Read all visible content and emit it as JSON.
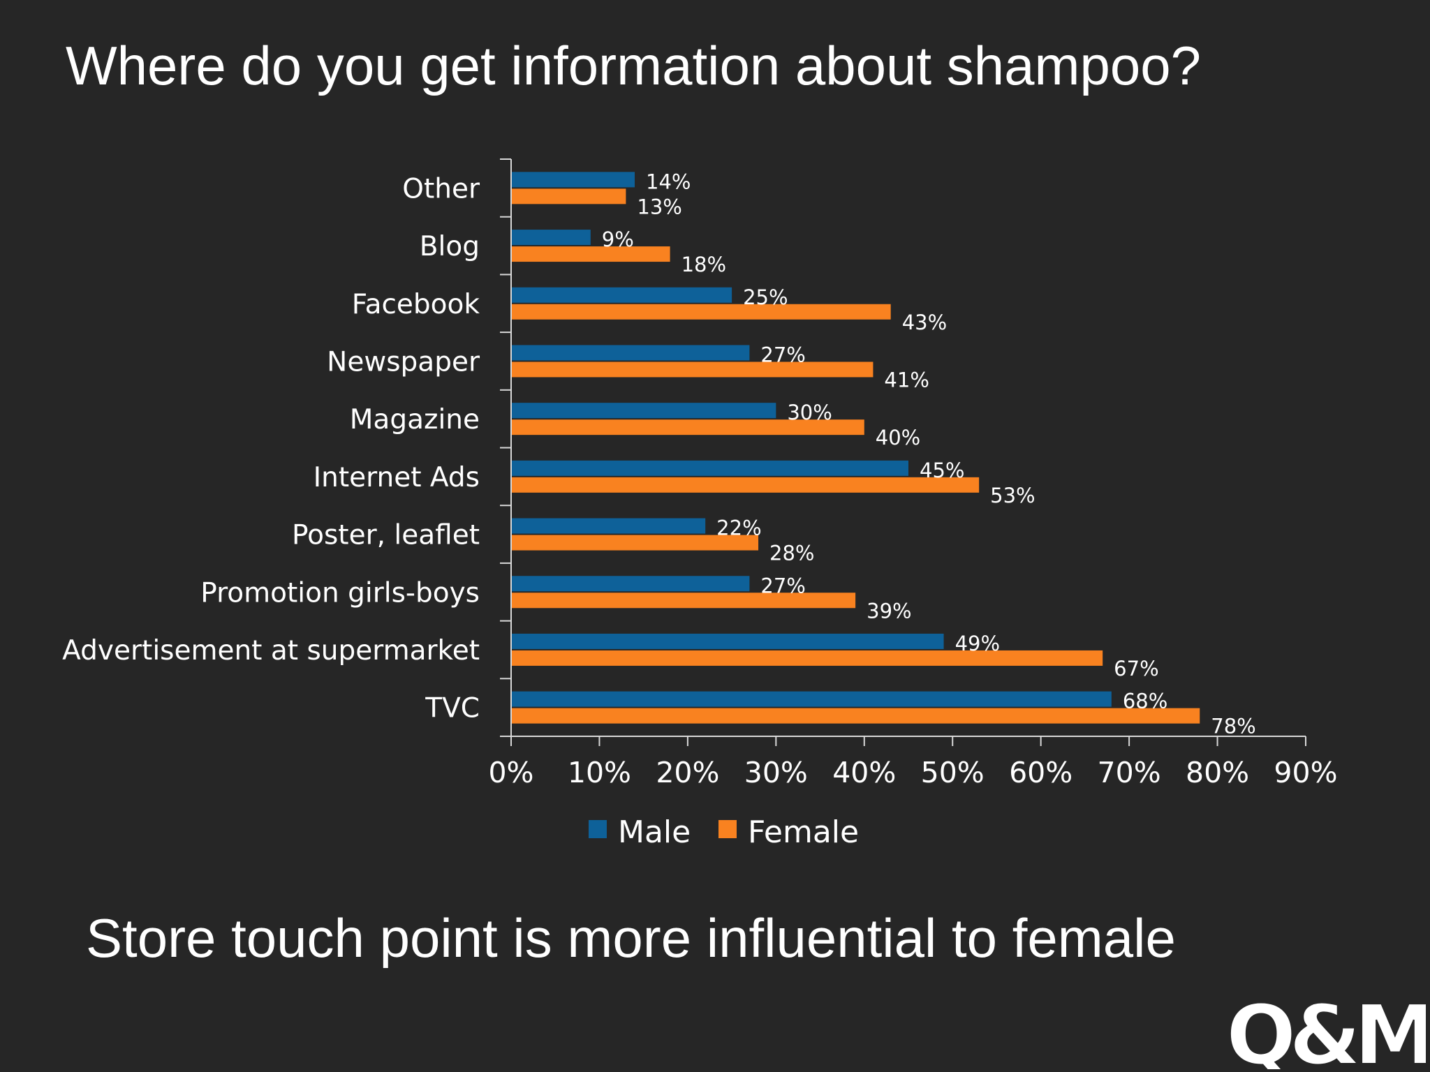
{
  "slide": {
    "title": "Where do you get information about shampoo?",
    "footer": "Store touch point is more influential to female",
    "logo_text": "Q&Me"
  },
  "colors": {
    "background": "#262626",
    "male": "#0e6199",
    "female": "#f98220",
    "text": "#ffffff",
    "axis": "#d9d9d9"
  },
  "chart_data": {
    "type": "bar",
    "orientation": "horizontal",
    "categories": [
      "Other",
      "Blog",
      "Facebook",
      "Newspaper",
      "Magazine",
      "Internet Ads",
      "Poster, leaflet",
      "Promotion girls-boys",
      "Advertisement at supermarket",
      "TVC"
    ],
    "series": [
      {
        "name": "Male",
        "values": [
          14,
          9,
          25,
          27,
          30,
          45,
          22,
          27,
          49,
          68
        ],
        "labels": [
          "14%",
          "9%",
          "25%",
          "27%",
          "30%",
          "45%",
          "22%",
          "27%",
          "49%",
          "68%"
        ]
      },
      {
        "name": "Female",
        "values": [
          13,
          18,
          43,
          41,
          40,
          53,
          28,
          39,
          67,
          78
        ],
        "labels": [
          "13%",
          "18%",
          "43%",
          "41%",
          "40%",
          "53%",
          "28%",
          "39%",
          "67%",
          "78%"
        ]
      }
    ],
    "xlim": [
      0,
      90
    ],
    "xticks": [
      0,
      10,
      20,
      30,
      40,
      50,
      60,
      70,
      80,
      90
    ],
    "xtick_labels": [
      "0%",
      "10%",
      "20%",
      "30%",
      "40%",
      "50%",
      "60%",
      "70%",
      "80%",
      "90%"
    ],
    "grid": false,
    "legend": "bottom"
  }
}
